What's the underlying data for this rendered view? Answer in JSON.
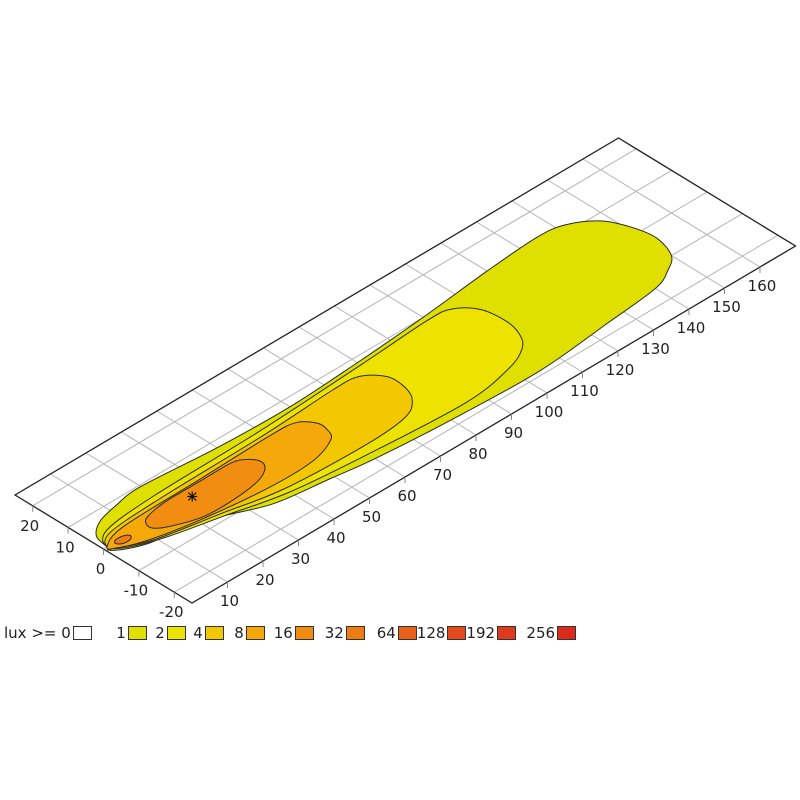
{
  "chart_data": {
    "type": "isolux-contour",
    "projection": "isometric ground plane",
    "x_axis": {
      "ticks": [
        10,
        20,
        30,
        40,
        50,
        60,
        70,
        80,
        90,
        100,
        110,
        120,
        130,
        140,
        150,
        160
      ],
      "range": [
        0,
        170
      ],
      "grid_step": 10
    },
    "y_axis": {
      "ticks": [
        -20,
        -10,
        0,
        10,
        20
      ],
      "range": [
        -25,
        25
      ],
      "grid_step": 10
    },
    "grid": true,
    "measurement_point": {
      "x": 25,
      "y": 0,
      "marker": "asterisk"
    },
    "legend": {
      "prefix": "lux >= ",
      "placement": "bottom",
      "levels": [
        {
          "label": "0",
          "color": "#ffffff"
        },
        {
          "label": "1",
          "color": "#dfe000"
        },
        {
          "label": "2",
          "color": "#eee300"
        },
        {
          "label": "4",
          "color": "#f4c800"
        },
        {
          "label": "8",
          "color": "#f5a80a"
        },
        {
          "label": "16",
          "color": "#f18e12"
        },
        {
          "label": "32",
          "color": "#ee7c12"
        },
        {
          "label": "64",
          "color": "#e9601a"
        },
        {
          "label": "128",
          "color": "#e44a1e"
        },
        {
          "label": "192",
          "color": "#e03a1e"
        },
        {
          "label": "256",
          "color": "#dc2a1c"
        }
      ]
    },
    "contours": [
      {
        "level": 1,
        "color": "#dfe000",
        "points": [
          [
            1,
            0
          ],
          [
            2,
            4
          ],
          [
            6,
            7
          ],
          [
            12,
            8.5
          ],
          [
            20,
            9.5
          ],
          [
            40,
            8
          ],
          [
            60,
            7.5
          ],
          [
            80,
            8.5
          ],
          [
            100,
            10
          ],
          [
            120,
            12
          ],
          [
            135,
            13
          ],
          [
            142,
            12
          ],
          [
            148,
            8
          ],
          [
            151,
            2
          ],
          [
            152,
            -4
          ],
          [
            150,
            -10
          ],
          [
            146,
            -13
          ],
          [
            140,
            -15.5
          ],
          [
            125,
            -17
          ],
          [
            104,
            -18.8
          ],
          [
            80,
            -18
          ],
          [
            60,
            -16.5
          ],
          [
            49,
            -15
          ],
          [
            35,
            -13
          ],
          [
            24,
            -8.5
          ],
          [
            15,
            -6
          ],
          [
            8,
            -5
          ],
          [
            3,
            -3
          ],
          [
            0.5,
            -1
          ]
        ]
      },
      {
        "level": 2,
        "color": "#eee300",
        "points": [
          [
            1,
            0
          ],
          [
            5,
            4
          ],
          [
            20,
            5.5
          ],
          [
            50,
            6
          ],
          [
            80,
            7.5
          ],
          [
            100,
            8.7
          ],
          [
            106,
            8
          ],
          [
            110,
            4
          ],
          [
            111,
            -2
          ],
          [
            110,
            -7
          ],
          [
            107,
            -11
          ],
          [
            100,
            -14
          ],
          [
            86,
            -16
          ],
          [
            60,
            -14.5
          ],
          [
            40,
            -12.5
          ],
          [
            25,
            -9
          ],
          [
            12,
            -6
          ],
          [
            4,
            -3
          ]
        ]
      },
      {
        "level": 4,
        "color": "#f4c800",
        "points": [
          [
            1,
            0
          ],
          [
            5,
            3
          ],
          [
            20,
            4
          ],
          [
            50,
            4.5
          ],
          [
            70,
            5.5
          ],
          [
            77,
            5
          ],
          [
            81,
            1
          ],
          [
            81,
            -4
          ],
          [
            79,
            -8
          ],
          [
            74,
            -11
          ],
          [
            62,
            -12
          ],
          [
            40,
            -11
          ],
          [
            25,
            -8
          ],
          [
            10,
            -5
          ],
          [
            3,
            -2
          ]
        ]
      },
      {
        "level": 8,
        "color": "#f5a80a",
        "points": [
          [
            1,
            0
          ],
          [
            8,
            2.5
          ],
          [
            30,
            3
          ],
          [
            50,
            3.5
          ],
          [
            57,
            3
          ],
          [
            60,
            0
          ],
          [
            60,
            -3
          ],
          [
            58,
            -6
          ],
          [
            50,
            -8.5
          ],
          [
            37,
            -8.5
          ],
          [
            20,
            -6.5
          ],
          [
            8,
            -4
          ],
          [
            2,
            -1.5
          ]
        ]
      },
      {
        "level": 16,
        "color": "#f18e12",
        "points": [
          [
            12,
            0
          ],
          [
            14,
            1.5
          ],
          [
            20,
            2.5
          ],
          [
            30,
            2.5
          ],
          [
            38,
            2.5
          ],
          [
            41,
            1.5
          ],
          [
            43,
            -1
          ],
          [
            42,
            -3.5
          ],
          [
            38,
            -5.5
          ],
          [
            30,
            -6.5
          ],
          [
            22,
            -6.3
          ],
          [
            15,
            -4
          ],
          [
            12,
            -2
          ]
        ]
      },
      {
        "level": 32,
        "color": "#ee7c12",
        "points": [
          [
            3,
            -0.3
          ],
          [
            4,
            0.5
          ],
          [
            6,
            0.3
          ],
          [
            7,
            -0.6
          ],
          [
            6,
            -1.5
          ],
          [
            4,
            -1.4
          ]
        ]
      }
    ]
  }
}
